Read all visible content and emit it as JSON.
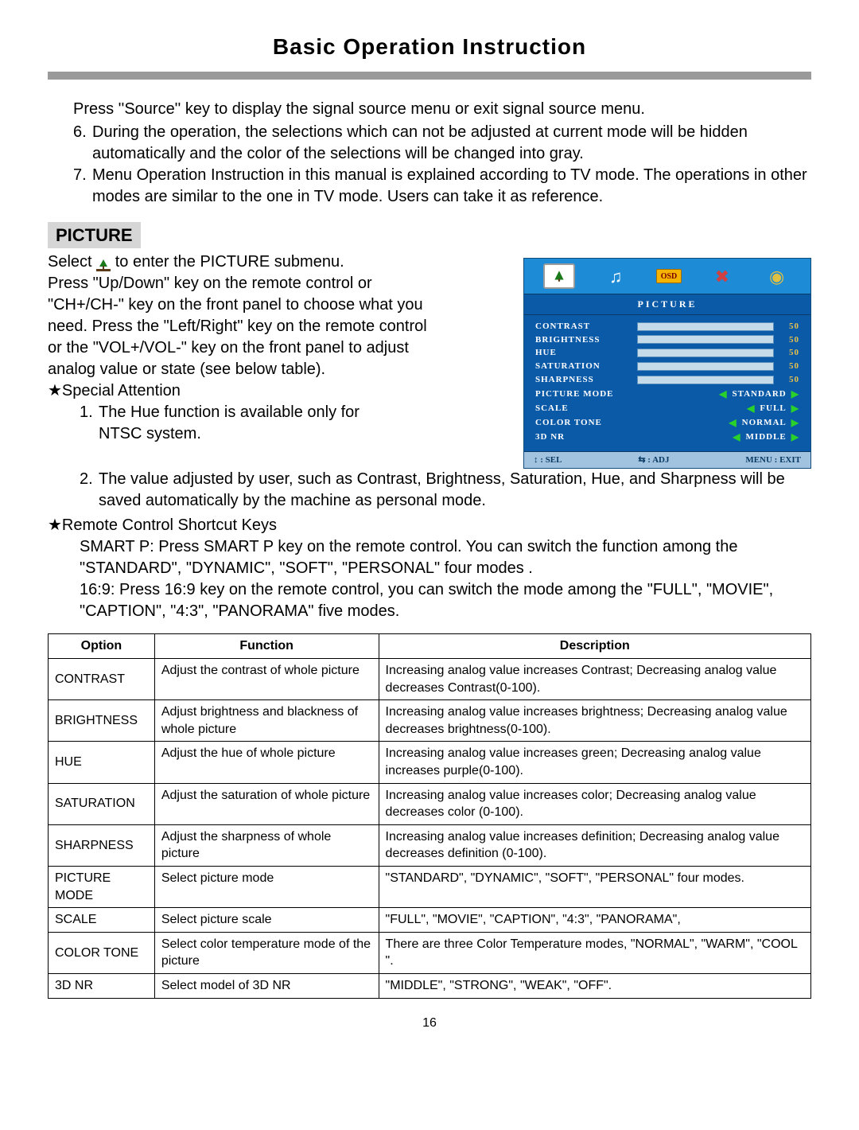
{
  "title": "Basic Operation Instruction",
  "intro": {
    "line0": "Press ''Source'' key to display the signal source menu or exit signal source menu.",
    "item6": "During the operation, the selections which can not be adjusted at current mode will be hidden automatically and the color of the selections will be changed into gray.",
    "item7": "Menu Operation Instruction in this manual is explained according to TV mode. The operations in other modes are similar to the one in TV mode. Users can take it as reference."
  },
  "picture": {
    "label": "PICTURE",
    "text1": "Select",
    "text1b": "to enter the PICTURE submenu.",
    "text2": "Press \"Up/Down\" key on the remote control or \"CH+/CH-\" key on the front panel to choose what you need. Press the \"Left/Right\" key on the remote control or the \"VOL+/VOL-\" key on the front panel to adjust analog value or state (see below table)."
  },
  "special": {
    "heading": "★Special Attention",
    "n1": "1.",
    "t1a": "The Hue function is available only for",
    "t1b": "NTSC system.",
    "n2": "2.",
    "t2": "The value adjusted by user, such as Contrast, Brightness, Saturation, Hue, and Sharpness will be saved automatically by the machine as personal mode."
  },
  "shortcut": {
    "heading": "★Remote Control Shortcut Keys",
    "p1": "SMART P: Press SMART P key on the remote control. You can switch the function among the \"STANDARD\", \"DYNAMIC\", \"SOFT\", \"PERSONAL\" four modes .",
    "p2": "16:9: Press 16:9 key on the remote control, you can switch the mode among the \"FULL\", \"MOVIE\", \"CAPTION\", \"4:3\", \"PANORAMA\" five modes."
  },
  "osd": {
    "title": "PICTURE",
    "rows_slider": [
      {
        "label": "CONTRAST",
        "val": "50"
      },
      {
        "label": "BRIGHTNESS",
        "val": "50"
      },
      {
        "label": "HUE",
        "val": "50"
      },
      {
        "label": "SATURATION",
        "val": "50"
      },
      {
        "label": "SHARPNESS",
        "val": "50"
      }
    ],
    "rows_mode": [
      {
        "label": "PICTURE MODE",
        "val": "STANDARD"
      },
      {
        "label": "SCALE",
        "val": "FULL"
      },
      {
        "label": "COLOR TONE",
        "val": "NORMAL"
      },
      {
        "label": "3D NR",
        "val": "MIDDLE"
      }
    ],
    "foot_l": "↕ : SEL",
    "foot_m": "⇆ : ADJ",
    "foot_r": "MENU : EXIT"
  },
  "table": {
    "h1": "Option",
    "h2": "Function",
    "h3": "Description",
    "rows": [
      {
        "o": "CONTRAST",
        "f": "Adjust the contrast of whole picture",
        "d": "Increasing analog value increases Contrast; Decreasing analog value decreases Contrast(0-100)."
      },
      {
        "o": "BRIGHTNESS",
        "f": "Adjust brightness and blackness of whole picture",
        "d": "Increasing analog value increases brightness; Decreasing  analog value decreases brightness(0-100)."
      },
      {
        "o": "HUE",
        "f": "Adjust the hue of whole picture",
        "d": "Increasing analog value increases green; Decreasing analog value increases purple(0-100)."
      },
      {
        "o": "SATURATION",
        "f": "Adjust the saturation of whole picture",
        "d": "Increasing analog value increases color; Decreasing analog value decreases color (0-100)."
      },
      {
        "o": "SHARPNESS",
        "f": "Adjust the sharpness of whole picture",
        "d": "Increasing analog value increases definition; Decreasing analog value decreases definition (0-100)."
      },
      {
        "o": "PICTURE MODE",
        "f": "Select picture mode",
        "d": "\"STANDARD\", \"DYNAMIC\", \"SOFT\", \"PERSONAL\" four modes."
      },
      {
        "o": "SCALE",
        "f": "Select picture scale",
        "d": "\"FULL\", \"MOVIE\", \"CAPTION\", \"4:3\", \"PANORAMA\","
      },
      {
        "o": "COLOR TONE",
        "f": "Select color temperature mode of the picture",
        "d": "There are three Color Temperature modes, \"NORMAL\", \"WARM\",  \"COOL \"."
      },
      {
        "o": "3D NR",
        "f": "Select model of 3D NR",
        "d": "\"MIDDLE\", \"STRONG\", \"WEAK\", \"OFF\"."
      }
    ]
  },
  "page": "16"
}
